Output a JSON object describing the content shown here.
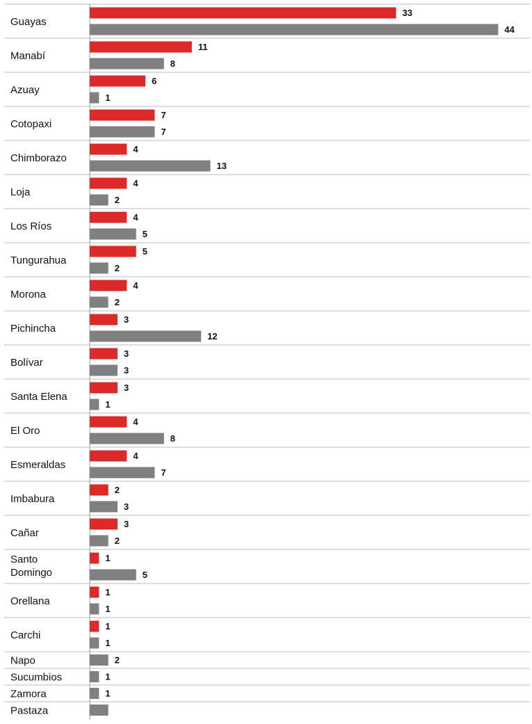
{
  "chart_data": {
    "type": "bar",
    "orientation": "horizontal",
    "grid": "row separators",
    "legend": "none",
    "colors": {
      "series1": "#dc2a2a",
      "series2": "#808080"
    },
    "categories": [
      "Guayas",
      "Manabí",
      "Azuay",
      "Cotopaxi",
      "Chimborazo",
      "Loja",
      "Los Ríos",
      "Tungurahua",
      "Morona",
      "Pichincha",
      "Bolívar",
      "Santa Elena",
      "El Oro",
      "Esmeraldas",
      "Imbabura",
      "Cañar",
      "Santo Domingo",
      "Orellana",
      "Carchi",
      "Napo",
      "Sucumbios",
      "Zamora",
      "Pastaza"
    ],
    "series": [
      {
        "values": [
          33,
          11,
          6,
          7,
          4,
          4,
          4,
          5,
          4,
          3,
          3,
          3,
          4,
          4,
          2,
          3,
          1,
          1,
          1,
          null,
          null,
          null,
          null
        ],
        "color": "#dc2a2a"
      },
      {
        "values": [
          44,
          8,
          1,
          7,
          13,
          2,
          5,
          2,
          2,
          12,
          3,
          1,
          8,
          7,
          3,
          2,
          5,
          1,
          1,
          2,
          1,
          1,
          null
        ],
        "color": "#808080"
      }
    ],
    "pastaza_bar_value": 2
  }
}
